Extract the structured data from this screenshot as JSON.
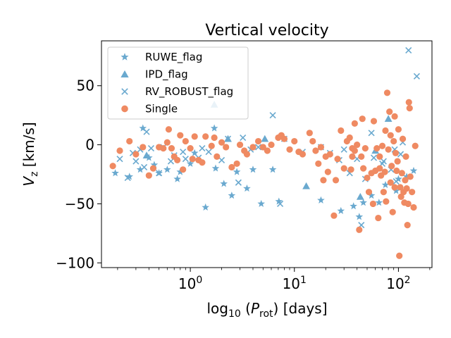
{
  "chart_data": {
    "type": "scatter",
    "title": "Vertical velocity",
    "xlabel_parts": [
      "log",
      "10",
      " (",
      "P",
      "rot",
      ") [days]"
    ],
    "ylabel_parts": [
      "V",
      "z",
      " [km/s]"
    ],
    "x_scale": "log",
    "xlim": [
      0.14,
      210
    ],
    "ylim": [
      -104,
      88
    ],
    "x_ticks": [
      {
        "value": 1,
        "base": "10",
        "exp": "0"
      },
      {
        "value": 10,
        "base": "10",
        "exp": "1"
      },
      {
        "value": 100,
        "base": "10",
        "exp": "2"
      }
    ],
    "y_ticks": [
      {
        "value": 50,
        "label": "50"
      },
      {
        "value": 0,
        "label": "0"
      },
      {
        "value": -50,
        "label": "−50"
      },
      {
        "value": -100,
        "label": "−100"
      }
    ],
    "grid": false,
    "legend_position": "upper-left",
    "colors": {
      "blue": "#6aa9cf",
      "orange": "#ef8a62"
    },
    "series": [
      {
        "name": "RUWE_flag",
        "marker": "star",
        "color": "#6aa9cf",
        "points": [
          [
            0.19,
            -24
          ],
          [
            0.26,
            -27
          ],
          [
            0.33,
            -21
          ],
          [
            0.35,
            14
          ],
          [
            0.4,
            -11
          ],
          [
            0.45,
            -17
          ],
          [
            0.5,
            -24
          ],
          [
            0.6,
            -21
          ],
          [
            0.75,
            -29
          ],
          [
            0.8,
            -23
          ],
          [
            1.0,
            -16
          ],
          [
            1.1,
            -7
          ],
          [
            1.4,
            -53
          ],
          [
            1.7,
            14
          ],
          [
            1.75,
            -20
          ],
          [
            2.1,
            -33
          ],
          [
            2.5,
            -43
          ],
          [
            2.8,
            -23
          ],
          [
            3.5,
            -37
          ],
          [
            4.0,
            -21
          ],
          [
            4.8,
            -50
          ],
          [
            6.2,
            -21
          ],
          [
            7.1,
            -48
          ],
          [
            18,
            -47
          ],
          [
            28,
            -56
          ],
          [
            37,
            -52
          ],
          [
            42,
            -61
          ],
          [
            46,
            -49
          ],
          [
            55,
            -43
          ],
          [
            65,
            -49
          ],
          [
            75,
            -34
          ],
          [
            95,
            -39
          ],
          [
            100,
            -29
          ],
          [
            120,
            -27
          ],
          [
            140,
            -22
          ]
        ]
      },
      {
        "name": "IPD_flag",
        "marker": "triangle",
        "color": "#6aa9cf",
        "points": [
          [
            0.38,
            -9
          ],
          [
            1.7,
            34
          ],
          [
            2.3,
            5
          ],
          [
            5.2,
            5
          ],
          [
            13,
            -35
          ],
          [
            43,
            -44
          ],
          [
            80,
            22
          ],
          [
            60,
            -5
          ]
        ]
      },
      {
        "name": "RV_ROBUST_flag",
        "marker": "x",
        "color": "#6aa9cf",
        "points": [
          [
            0.21,
            -12
          ],
          [
            0.25,
            -28
          ],
          [
            0.28,
            -7
          ],
          [
            0.3,
            -14
          ],
          [
            0.33,
            -4
          ],
          [
            0.36,
            -19
          ],
          [
            0.38,
            11
          ],
          [
            0.42,
            -3
          ],
          [
            0.5,
            -24
          ],
          [
            0.55,
            -2
          ],
          [
            0.65,
            -14
          ],
          [
            0.7,
            -9
          ],
          [
            0.85,
            -6
          ],
          [
            0.9,
            -12
          ],
          [
            1.2,
            -11
          ],
          [
            1.3,
            -3
          ],
          [
            1.5,
            -6
          ],
          [
            2.0,
            -13
          ],
          [
            2.3,
            5
          ],
          [
            2.9,
            -32
          ],
          [
            3.2,
            6
          ],
          [
            3.8,
            -4
          ],
          [
            4.5,
            -2
          ],
          [
            6.2,
            25
          ],
          [
            7.3,
            -50
          ],
          [
            8,
            5
          ],
          [
            12,
            -6
          ],
          [
            18,
            -2
          ],
          [
            22,
            -7
          ],
          [
            27,
            -13
          ],
          [
            30,
            -4
          ],
          [
            34,
            -24
          ],
          [
            40,
            -12
          ],
          [
            44,
            -68
          ],
          [
            48,
            -29
          ],
          [
            58,
            -11
          ],
          [
            70,
            -16
          ],
          [
            85,
            -21
          ],
          [
            92,
            -4
          ],
          [
            105,
            -8
          ],
          [
            110,
            2
          ],
          [
            125,
            80
          ],
          [
            150,
            58
          ],
          [
            95,
            -31
          ],
          [
            72,
            -14
          ],
          [
            55,
            10
          ]
        ]
      },
      {
        "name": "Single",
        "marker": "circle",
        "color": "#ef8a62",
        "points": [
          [
            0.18,
            -18
          ],
          [
            0.21,
            -5
          ],
          [
            0.26,
            3
          ],
          [
            0.3,
            -8
          ],
          [
            0.35,
            -2
          ],
          [
            0.4,
            -26
          ],
          [
            0.44,
            -20
          ],
          [
            0.5,
            -2
          ],
          [
            0.55,
            -3
          ],
          [
            0.6,
            2
          ],
          [
            0.62,
            13
          ],
          [
            0.66,
            -3
          ],
          [
            0.7,
            -10
          ],
          [
            0.75,
            -13
          ],
          [
            0.8,
            8
          ],
          [
            0.85,
            -21
          ],
          [
            0.9,
            3
          ],
          [
            1.0,
            -3
          ],
          [
            1.05,
            -12
          ],
          [
            1.1,
            7
          ],
          [
            1.2,
            -13
          ],
          [
            1.3,
            -15
          ],
          [
            1.4,
            7
          ],
          [
            1.6,
            -1
          ],
          [
            1.7,
            6
          ],
          [
            1.8,
            -10
          ],
          [
            2.0,
            2
          ],
          [
            2.2,
            -2
          ],
          [
            2.5,
            -19
          ],
          [
            2.8,
            -16
          ],
          [
            3.0,
            0
          ],
          [
            3.3,
            -5
          ],
          [
            3.5,
            -8
          ],
          [
            4,
            -2
          ],
          [
            4.5,
            3
          ],
          [
            5,
            -2
          ],
          [
            5.5,
            -5
          ],
          [
            6,
            0
          ],
          [
            7,
            6
          ],
          [
            7.5,
            8
          ],
          [
            8,
            5
          ],
          [
            9,
            -4
          ],
          [
            10,
            3
          ],
          [
            11,
            -6
          ],
          [
            12,
            -8
          ],
          [
            14,
            10
          ],
          [
            15,
            3
          ],
          [
            16,
            -5
          ],
          [
            17,
            -16
          ],
          [
            18,
            -2
          ],
          [
            19,
            -30
          ],
          [
            20,
            -10
          ],
          [
            21,
            -23
          ],
          [
            22,
            -8
          ],
          [
            24,
            -60
          ],
          [
            25,
            -30
          ],
          [
            26,
            -12
          ],
          [
            28,
            12
          ],
          [
            30,
            -20
          ],
          [
            32,
            3
          ],
          [
            34,
            6
          ],
          [
            35,
            -21
          ],
          [
            36,
            -10
          ],
          [
            38,
            -5
          ],
          [
            40,
            0
          ],
          [
            42,
            -72
          ],
          [
            44,
            -10
          ],
          [
            46,
            -20
          ],
          [
            48,
            -3
          ],
          [
            50,
            -28
          ],
          [
            52,
            -40
          ],
          [
            55,
            -24
          ],
          [
            57,
            -50
          ],
          [
            60,
            -22
          ],
          [
            62,
            -3
          ],
          [
            64,
            -62
          ],
          [
            66,
            -10
          ],
          [
            68,
            -26
          ],
          [
            70,
            -1
          ],
          [
            72,
            -40
          ],
          [
            74,
            -23
          ],
          [
            76,
            -48
          ],
          [
            78,
            44
          ],
          [
            80,
            -4
          ],
          [
            82,
            28
          ],
          [
            84,
            -32
          ],
          [
            86,
            -18
          ],
          [
            88,
            -57
          ],
          [
            90,
            3
          ],
          [
            92,
            -36
          ],
          [
            94,
            -7
          ],
          [
            96,
            -22
          ],
          [
            98,
            -14
          ],
          [
            100,
            13
          ],
          [
            102,
            -94
          ],
          [
            104,
            -36
          ],
          [
            106,
            -44
          ],
          [
            108,
            -24
          ],
          [
            110,
            5
          ],
          [
            112,
            -40
          ],
          [
            114,
            -49
          ],
          [
            116,
            -30
          ],
          [
            118,
            -10
          ],
          [
            120,
            -37
          ],
          [
            122,
            -68
          ],
          [
            124,
            -50
          ],
          [
            126,
            36
          ],
          [
            128,
            31
          ],
          [
            130,
            -27
          ],
          [
            135,
            -40
          ],
          [
            140,
            -53
          ],
          [
            145,
            -1
          ],
          [
            58,
            20
          ],
          [
            45,
            22
          ],
          [
            38,
            18
          ],
          [
            36,
            -3
          ],
          [
            84,
            8
          ],
          [
            92,
            24
          ],
          [
            66,
            -20
          ],
          [
            75,
            12
          ]
        ]
      }
    ]
  }
}
